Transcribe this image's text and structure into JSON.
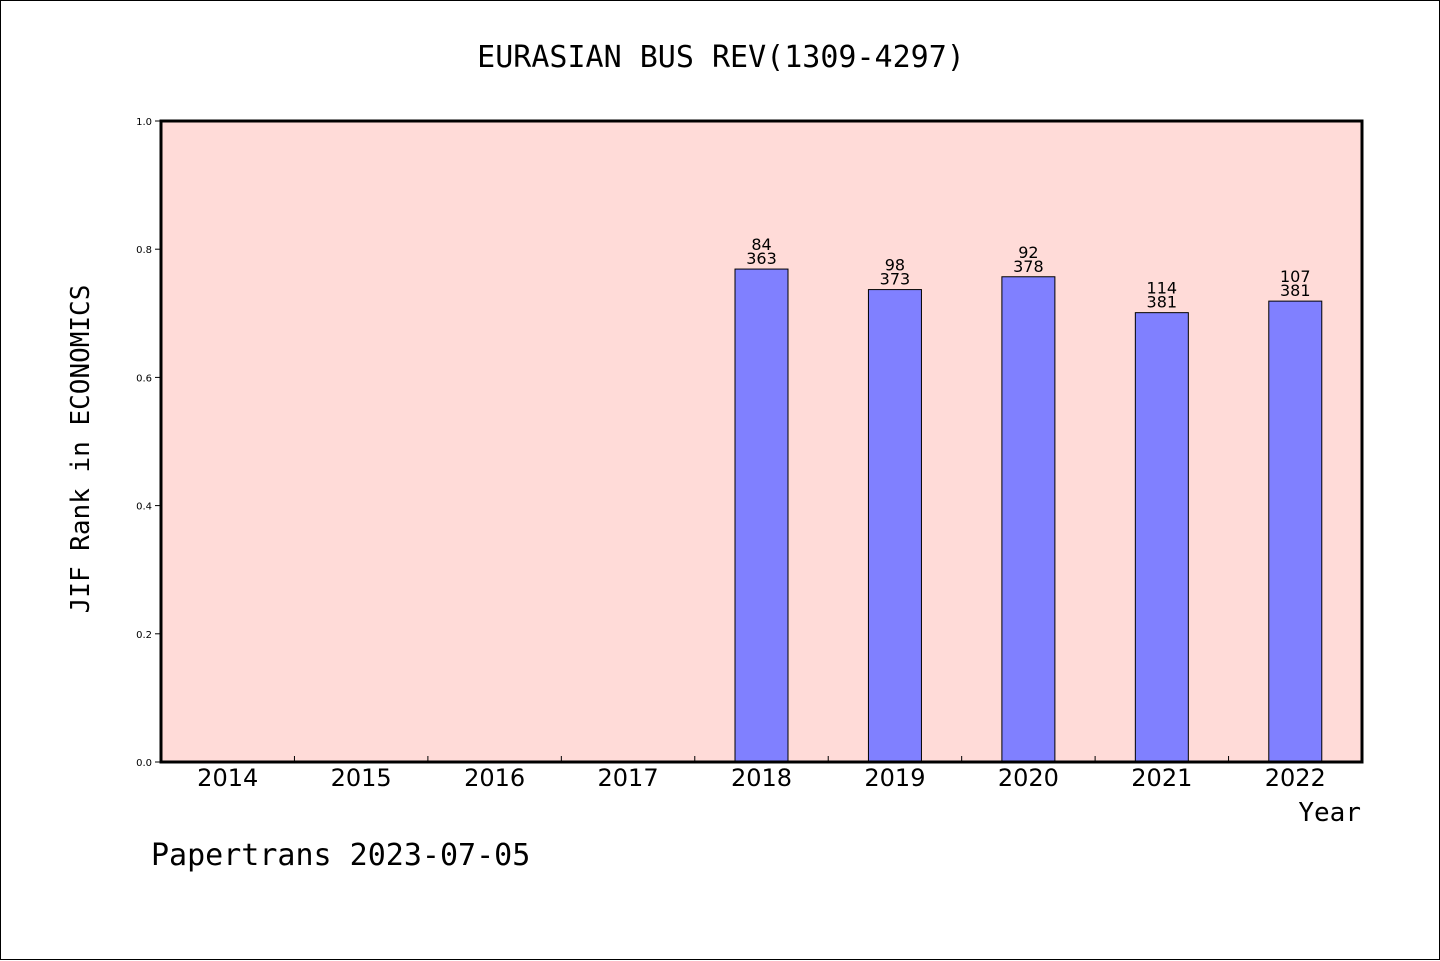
{
  "chart_data": {
    "type": "bar",
    "title": "EURASIAN BUS REV(1309-4297)",
    "xlabel": "Year",
    "ylabel": "JIF Rank in ECONOMICS",
    "categories": [
      "2014",
      "2015",
      "2016",
      "2017",
      "2018",
      "2019",
      "2020",
      "2021",
      "2022"
    ],
    "values": [
      null,
      null,
      null,
      null,
      0.769,
      0.737,
      0.757,
      0.701,
      0.719
    ],
    "rank": [
      null,
      null,
      null,
      null,
      "84",
      "98",
      "92",
      "114",
      "107"
    ],
    "total": [
      null,
      null,
      null,
      null,
      "363",
      "373",
      "378",
      "381",
      "381"
    ],
    "ylim": [
      0,
      1.0
    ],
    "yticks": [
      "0.0",
      "0.2",
      "0.4",
      "0.6",
      "0.8",
      "1.0"
    ],
    "grid": false,
    "legend": "none",
    "colors": {
      "plot_background": "#FFDBD8",
      "bar_fill": "#8080FF",
      "bar_stroke": "#000000"
    }
  },
  "footer": {
    "text": "Papertrans 2023-07-05"
  }
}
